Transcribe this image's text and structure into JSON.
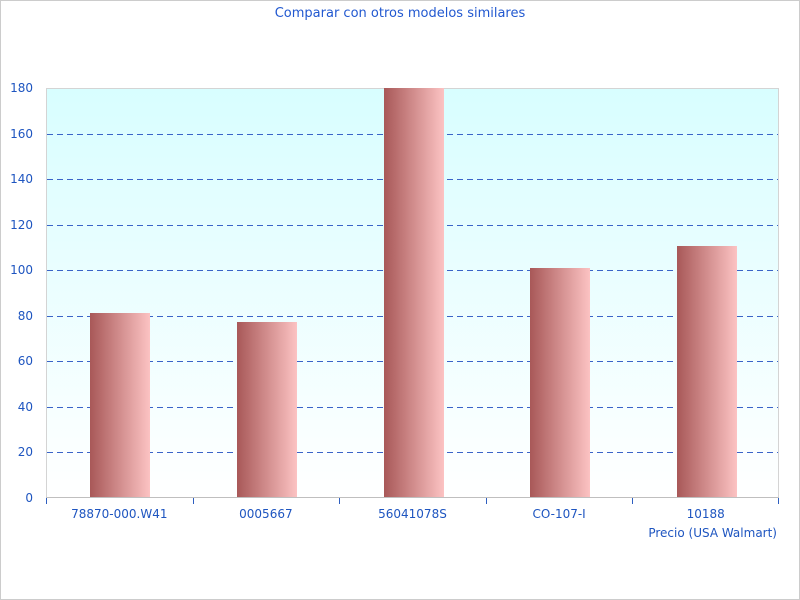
{
  "chart_data": {
    "type": "bar",
    "title": "Comparar con otros modelos similares",
    "xlabel": "Precio (USA Walmart)",
    "ylabel": "",
    "categories": [
      "78870-000.W41",
      "0005667",
      "56041078S",
      "CO-107-I",
      "10188"
    ],
    "values": [
      81,
      77,
      179.5,
      100.5,
      110
    ],
    "ylim": [
      0,
      180
    ],
    "ytick_step": 20,
    "grid": "horizontal dashed",
    "legend_position": "none",
    "bar_style": "vertical gradient cylinder"
  },
  "colors": {
    "title_text": "#2158d0",
    "axis_text": "#1e55c0",
    "gridline": "#3a64c8",
    "tick": "#2e5fc0",
    "plot_bg_top": "#d8feff",
    "plot_bg_bottom": "#ffffff",
    "bar_gradient_left": "#a85858",
    "bar_gradient_right": "#fcc3c3",
    "frame_border": "#d4d4d4",
    "axis_line": "#bfbfbf",
    "outer_border": "#cccccc"
  }
}
